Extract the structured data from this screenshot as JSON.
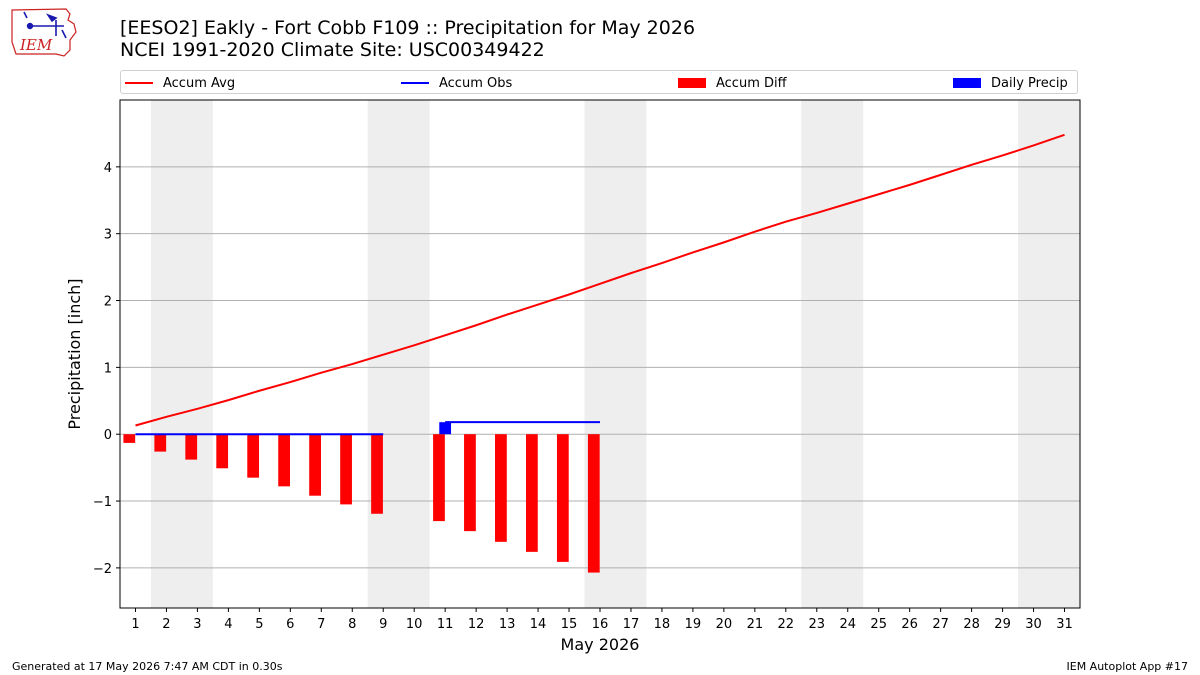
{
  "logo": {
    "text": "IEM",
    "icon": "iem-iowa-logo"
  },
  "header": {
    "title_line1": "[EESO2] Eakly - Fort Cobb F109 :: Precipitation for May 2026",
    "title_line2": "NCEI 1991-2020 Climate Site: USC00349422"
  },
  "footer": {
    "left": "Generated at 17 May 2026 7:47 AM CDT in 0.30s",
    "right": "IEM Autoplot App #17"
  },
  "colors": {
    "avg": "#ff0000",
    "obs": "#0000ff",
    "diff": "#ff0000",
    "daily": "#0000ff",
    "weekend_band": "#eeeeee",
    "grid": "#b0b0b0"
  },
  "chart_data": {
    "type": "bar",
    "title": "",
    "xlabel": "May 2026",
    "ylabel": "Precipitation [inch]",
    "xlim": [
      0.5,
      31.5
    ],
    "ylim": [
      -2.6,
      5.0
    ],
    "yticks": [
      -2,
      -1,
      0,
      1,
      2,
      3,
      4
    ],
    "ytick_labels": [
      "−2",
      "−1",
      "0",
      "1",
      "2",
      "3",
      "4"
    ],
    "x": [
      1,
      2,
      3,
      4,
      5,
      6,
      7,
      8,
      9,
      10,
      11,
      12,
      13,
      14,
      15,
      16,
      17,
      18,
      19,
      20,
      21,
      22,
      23,
      24,
      25,
      26,
      27,
      28,
      29,
      30,
      31
    ],
    "xtick_labels": [
      "1",
      "2",
      "3",
      "4",
      "5",
      "6",
      "7",
      "8",
      "9",
      "10",
      "11",
      "12",
      "13",
      "14",
      "15",
      "16",
      "17",
      "18",
      "19",
      "20",
      "21",
      "22",
      "23",
      "24",
      "25",
      "26",
      "27",
      "28",
      "29",
      "30",
      "31"
    ],
    "weekend_bands": [
      [
        1.5,
        3.5
      ],
      [
        8.5,
        10.5
      ],
      [
        15.5,
        17.5
      ],
      [
        22.5,
        24.5
      ],
      [
        29.5,
        31.5
      ]
    ],
    "grid": "y",
    "legend_position": "top",
    "legend": [
      {
        "label": "Accum Avg",
        "kind": "line",
        "color": "#ff0000"
      },
      {
        "label": "Accum Obs",
        "kind": "line",
        "color": "#0000ff"
      },
      {
        "label": "Accum Diff",
        "kind": "bar",
        "color": "#ff0000"
      },
      {
        "label": "Daily Precip",
        "kind": "bar",
        "color": "#0000ff"
      }
    ],
    "series": [
      {
        "name": "Accum Avg",
        "type": "line",
        "color": "#ff0000",
        "x": [
          1,
          2,
          3,
          4,
          5,
          6,
          7,
          8,
          9,
          10,
          11,
          12,
          13,
          14,
          15,
          16,
          17,
          18,
          19,
          20,
          21,
          22,
          23,
          24,
          25,
          26,
          27,
          28,
          29,
          30,
          31
        ],
        "values": [
          0.13,
          0.26,
          0.38,
          0.51,
          0.65,
          0.78,
          0.92,
          1.05,
          1.19,
          1.33,
          1.48,
          1.63,
          1.79,
          1.94,
          2.09,
          2.25,
          2.41,
          2.56,
          2.72,
          2.87,
          3.03,
          3.18,
          3.31,
          3.45,
          3.59,
          3.73,
          3.88,
          4.03,
          4.17,
          4.32,
          4.48
        ]
      },
      {
        "name": "Accum Obs",
        "type": "line",
        "color": "#0000ff",
        "x": [
          1,
          2,
          3,
          4,
          5,
          6,
          7,
          8,
          9,
          11,
          12,
          13,
          14,
          15,
          16
        ],
        "values": [
          0,
          0,
          0,
          0,
          0,
          0,
          0,
          0,
          0,
          0.18,
          0.18,
          0.18,
          0.18,
          0.18,
          0.18
        ],
        "segments": [
          [
            1,
            9
          ],
          [
            11,
            16
          ]
        ]
      },
      {
        "name": "Accum Diff",
        "type": "bar",
        "color": "#ff0000",
        "x": [
          1,
          2,
          3,
          4,
          5,
          6,
          7,
          8,
          9,
          11,
          12,
          13,
          14,
          15,
          16
        ],
        "values": [
          -0.13,
          -0.26,
          -0.38,
          -0.51,
          -0.65,
          -0.78,
          -0.92,
          -1.05,
          -1.19,
          -1.3,
          -1.45,
          -1.61,
          -1.76,
          -1.91,
          -2.07
        ]
      },
      {
        "name": "Daily Precip",
        "type": "bar",
        "color": "#0000ff",
        "x": [
          11
        ],
        "values": [
          0.18
        ]
      }
    ]
  }
}
